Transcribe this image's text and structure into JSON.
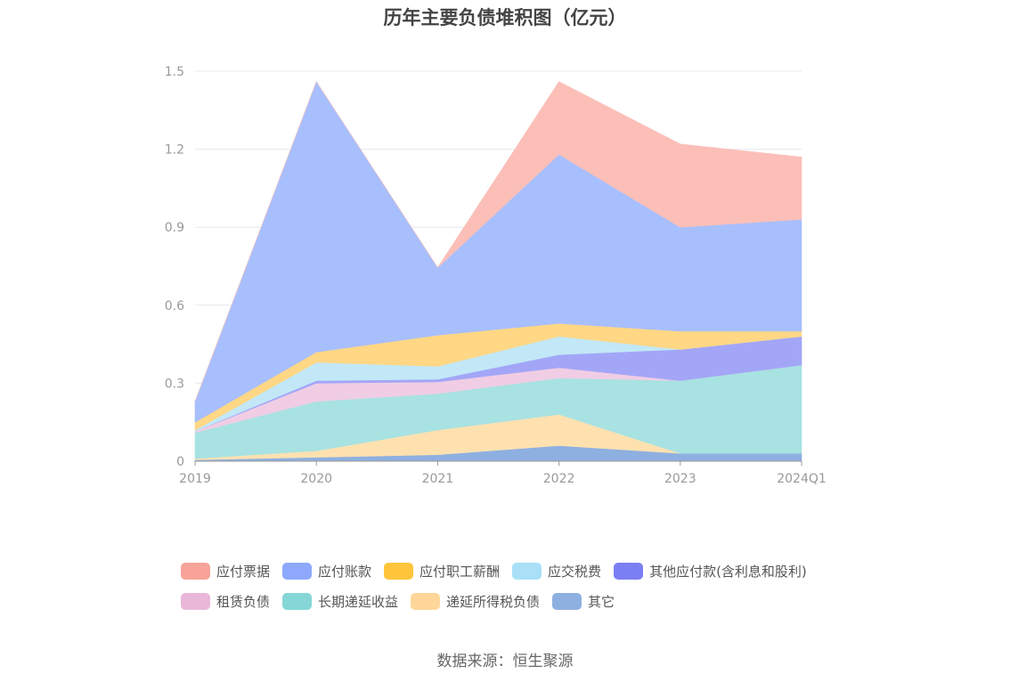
{
  "chart_data": {
    "type": "area",
    "stacked": true,
    "title": "历年主要负债堆积图（亿元）",
    "categories": [
      "2019",
      "2020",
      "2021",
      "2022",
      "2023",
      "2024Q1"
    ],
    "ylim": [
      0,
      1.5
    ],
    "yticks": [
      "0",
      "0.3",
      "0.6",
      "0.9",
      "1.2",
      "1.5"
    ],
    "grid": true,
    "legend_position": "bottom",
    "series": [
      {
        "name": "其它",
        "color": "#8eb0e0",
        "values": [
          0.005,
          0.015,
          0.025,
          0.06,
          0.03,
          0.03
        ]
      },
      {
        "name": "递延所得税负债",
        "color": "#ffe1b0",
        "values": [
          0.005,
          0.025,
          0.095,
          0.12,
          0.0,
          0.0
        ]
      },
      {
        "name": "长期递延收益",
        "color": "#a8e2e2",
        "values": [
          0.1,
          0.19,
          0.14,
          0.14,
          0.28,
          0.34
        ]
      },
      {
        "name": "租赁负债",
        "color": "#f0cde4",
        "values": [
          0.005,
          0.07,
          0.045,
          0.04,
          0.0,
          0.0
        ]
      },
      {
        "name": "其他应付款(含利息和股利)",
        "color": "#a3a6f7",
        "values": [
          0.0,
          0.01,
          0.01,
          0.05,
          0.12,
          0.11
        ]
      },
      {
        "name": "应交税费",
        "color": "#c2e8f7",
        "values": [
          0.005,
          0.07,
          0.05,
          0.07,
          0.0,
          0.0
        ]
      },
      {
        "name": "应付职工薪酬",
        "color": "#ffd785",
        "values": [
          0.03,
          0.04,
          0.12,
          0.05,
          0.07,
          0.02
        ]
      },
      {
        "name": "应付账款",
        "color": "#a8bffd",
        "values": [
          0.08,
          1.04,
          0.26,
          0.65,
          0.4,
          0.43
        ]
      },
      {
        "name": "应付票据",
        "color": "#fbbfb8",
        "values": [
          0.0,
          0.0,
          0.0,
          0.28,
          0.32,
          0.24
        ]
      }
    ]
  },
  "legend": [
    {
      "label": "应付票据",
      "color": "#f8a39a"
    },
    {
      "label": "应付账款",
      "color": "#8ea9fb"
    },
    {
      "label": "应付职工薪酬",
      "color": "#fec53a"
    },
    {
      "label": "应交税费",
      "color": "#a9e0f8"
    },
    {
      "label": "其他应付款(含利息和股利)",
      "color": "#7b7ff4"
    },
    {
      "label": "租赁负债",
      "color": "#e9b8d9"
    },
    {
      "label": "长期递延收益",
      "color": "#85d6d6"
    },
    {
      "label": "递延所得税负债",
      "color": "#fed69a"
    },
    {
      "label": "其它",
      "color": "#8eb0e0"
    }
  ],
  "source": "数据来源：恒生聚源"
}
